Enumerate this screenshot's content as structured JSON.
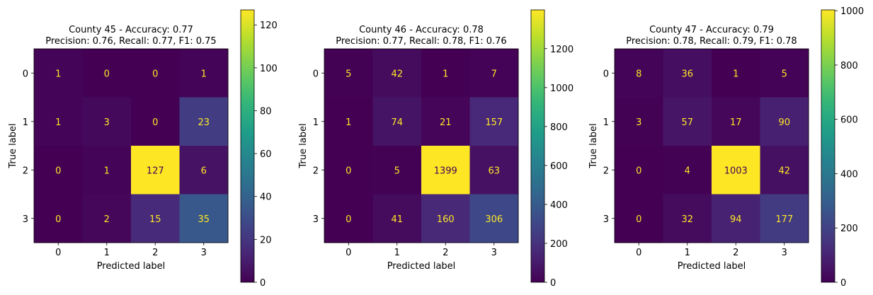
{
  "chart_data": [
    {
      "type": "heatmap",
      "title": "County 45 - Accuracy: 0.77",
      "subtitle": "Precision: 0.76, Recall: 0.77, F1: 0.75",
      "xlabel": "Predicted label",
      "ylabel": "True label",
      "x_ticks": [
        "0",
        "1",
        "2",
        "3"
      ],
      "y_ticks": [
        "0",
        "1",
        "2",
        "3"
      ],
      "matrix": [
        [
          1,
          0,
          0,
          1
        ],
        [
          1,
          3,
          0,
          23
        ],
        [
          0,
          1,
          127,
          6
        ],
        [
          0,
          2,
          15,
          35
        ]
      ],
      "colorbar": {
        "min": 0,
        "max": 127,
        "ticks": [
          0,
          20,
          40,
          60,
          80,
          100,
          120
        ]
      },
      "colormap": "viridis"
    },
    {
      "type": "heatmap",
      "title": "County 46 - Accuracy: 0.78",
      "subtitle": "Precision: 0.77, Recall: 0.78, F1: 0.76",
      "xlabel": "Predicted label",
      "ylabel": "True label",
      "x_ticks": [
        "0",
        "1",
        "2",
        "3"
      ],
      "y_ticks": [
        "0",
        "1",
        "2",
        "3"
      ],
      "matrix": [
        [
          5,
          42,
          1,
          7
        ],
        [
          1,
          74,
          21,
          157
        ],
        [
          0,
          5,
          1399,
          63
        ],
        [
          0,
          41,
          160,
          306
        ]
      ],
      "colorbar": {
        "min": 0,
        "max": 1399,
        "ticks": [
          0,
          200,
          400,
          600,
          800,
          1000,
          1200
        ]
      },
      "colormap": "viridis"
    },
    {
      "type": "heatmap",
      "title": "County 47 - Accuracy: 0.79",
      "subtitle": "Precision: 0.78, Recall: 0.79, F1: 0.78",
      "xlabel": "Predicted label",
      "ylabel": "True label",
      "x_ticks": [
        "0",
        "1",
        "2",
        "3"
      ],
      "y_ticks": [
        "0",
        "1",
        "2",
        "3"
      ],
      "matrix": [
        [
          8,
          36,
          1,
          5
        ],
        [
          3,
          57,
          17,
          90
        ],
        [
          0,
          4,
          1003,
          42
        ],
        [
          0,
          32,
          94,
          177
        ]
      ],
      "colorbar": {
        "min": 0,
        "max": 1003,
        "ticks": [
          0,
          200,
          400,
          600,
          800,
          1000
        ]
      },
      "colormap": "viridis"
    }
  ]
}
